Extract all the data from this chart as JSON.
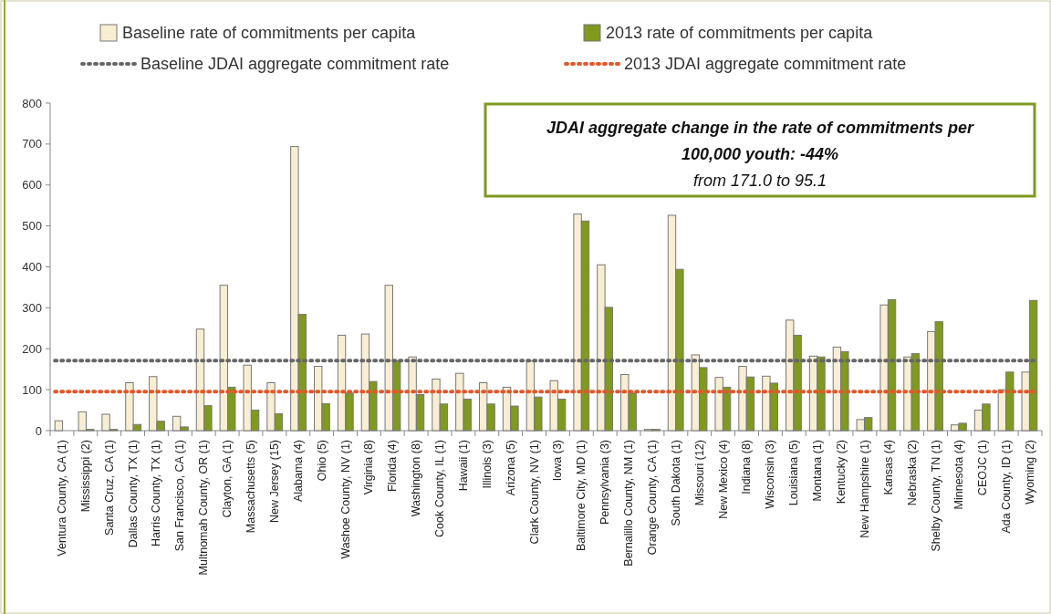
{
  "chart_data": {
    "type": "bar",
    "categories": [
      "Ventura County, CA (1)",
      "Mississippi (2)",
      "Santa Cruz, CA (1)",
      "Dallas County, TX (1)",
      "Harris County, TX (1)",
      "San Francisco, CA (1)",
      "Multnomah County, OR (1)",
      "Clayton, GA (1)",
      "Massachusetts (5)",
      "New Jersey (15)",
      "Alabama (4)",
      "Ohio (5)",
      "Washoe County, NV (1)",
      "Virginia (8)",
      "Florida (4)",
      "Washington (8)",
      "Cook County, IL (1)",
      "Hawaii (1)",
      "Illinois (3)",
      "Arizona (5)",
      "Clark County, NV (1)",
      "Iowa (3)",
      "Baltimore City, MD (1)",
      "Pennsylvania (3)",
      "Bernalillo County, NM (1)",
      "Orange County, CA (1)",
      "South Dakota (1)",
      "Missouri (12)",
      "New Mexico (4)",
      "Indiana (8)",
      "Wisconsin (3)",
      "Louisiana (5)",
      "Montana (1)",
      "Kentucky (2)",
      "New Hampshire (1)",
      "Kansas (4)",
      "Nebraska (2)",
      "Shelby County, TN (1)",
      "Minnesota (4)",
      "CEOJC (1)",
      "Ada County, ID (1)",
      "Wyoming (2)"
    ],
    "series": [
      {
        "name": "Baseline rate of commitments per capita",
        "color": "#f8eed3",
        "values": [
          24,
          46,
          40,
          117,
          132,
          35,
          248,
          355,
          160,
          117,
          694,
          157,
          233,
          236,
          355,
          180,
          126,
          140,
          117,
          106,
          170,
          122,
          529,
          405,
          137,
          3,
          526,
          185,
          130,
          157,
          133,
          270,
          182,
          204,
          27,
          307,
          180,
          242,
          14,
          50,
          100,
          143
        ]
      },
      {
        "name": "2013 rate of commitments per capita",
        "color": "#7f9a1f",
        "values": [
          0,
          3,
          3,
          15,
          23,
          9,
          61,
          106,
          50,
          41,
          284,
          66,
          92,
          120,
          171,
          88,
          65,
          77,
          65,
          60,
          82,
          77,
          512,
          301,
          92,
          3,
          394,
          154,
          106,
          131,
          116,
          233,
          180,
          193,
          32,
          320,
          188,
          266,
          18,
          65,
          143,
          318
        ]
      }
    ],
    "ref_lines": [
      {
        "axis": "y",
        "value": 171.0,
        "label": "Baseline JDAI aggregate commitment rate",
        "color": "#666666",
        "line_style": "dotted"
      },
      {
        "axis": "y",
        "value": 95.1,
        "label": "2013 JDAI aggregate commitment rate",
        "color": "#e2572a",
        "line_style": "dotted"
      }
    ],
    "annotations": [
      "JDAI aggregate change in the rate of commitments per",
      "100,000 youth: -44%",
      "from 171.0 to 95.1"
    ],
    "ylim": [
      0,
      800
    ],
    "yticks": [
      0,
      100,
      200,
      300,
      400,
      500,
      600,
      700,
      800
    ],
    "grid": false,
    "legend": "top"
  }
}
